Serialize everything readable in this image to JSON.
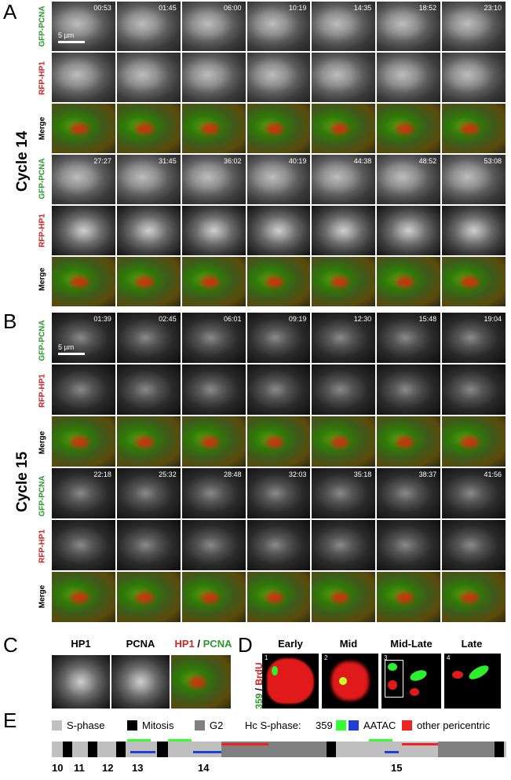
{
  "panels": {
    "A": "A",
    "B": "B",
    "C": "C",
    "D": "D",
    "E": "E"
  },
  "cycles": {
    "a": "Cycle 14",
    "b": "Cycle 15"
  },
  "row_labels": {
    "gfp": "GFP-PCNA",
    "rfp": "RFP-HP1",
    "merge": "Merge"
  },
  "scale": {
    "a": "5 µm",
    "b": "5 µm"
  },
  "times_a1": [
    "00:53",
    "01:45",
    "06:00",
    "10:19",
    "14:35",
    "18:52",
    "23:10"
  ],
  "times_a2": [
    "27:27",
    "31:45",
    "36:02",
    "40:19",
    "44:38",
    "48:52",
    "53:08"
  ],
  "times_b1": [
    "01:39",
    "02:45",
    "06:01",
    "09:19",
    "12:30",
    "15:48",
    "19:04"
  ],
  "times_b2": [
    "22:18",
    "25:32",
    "28:48",
    "32:03",
    "35:18",
    "38:37",
    "41:56"
  ],
  "panel_c": {
    "h1": "HP1",
    "h2": "PCNA",
    "h3a": "HP1",
    "h3sep": " / ",
    "h3b": "PCNA"
  },
  "panel_d": {
    "stages": [
      "Early",
      "Mid",
      "Mid-Late",
      "Late"
    ],
    "nums": [
      "1",
      "2",
      "3",
      "4"
    ],
    "ylab_a": "359",
    "ylab_sep": " / ",
    "ylab_b": "BrdU"
  },
  "panel_e": {
    "legend": {
      "s": "S-phase",
      "m": "Mitosis",
      "g": "G2",
      "hc": "Hc S-phase:",
      "l359": "359",
      "aatac": "AATAC",
      "other": "other pericentric"
    },
    "ticks": [
      "10",
      "11",
      "12",
      "13",
      "14",
      "15"
    ],
    "colors": {
      "s": "#c0c0c0",
      "m": "#000000",
      "g": "#808080",
      "359": "#33ff33",
      "aatac": "#1f3fd6",
      "other": "#ee2222"
    }
  }
}
